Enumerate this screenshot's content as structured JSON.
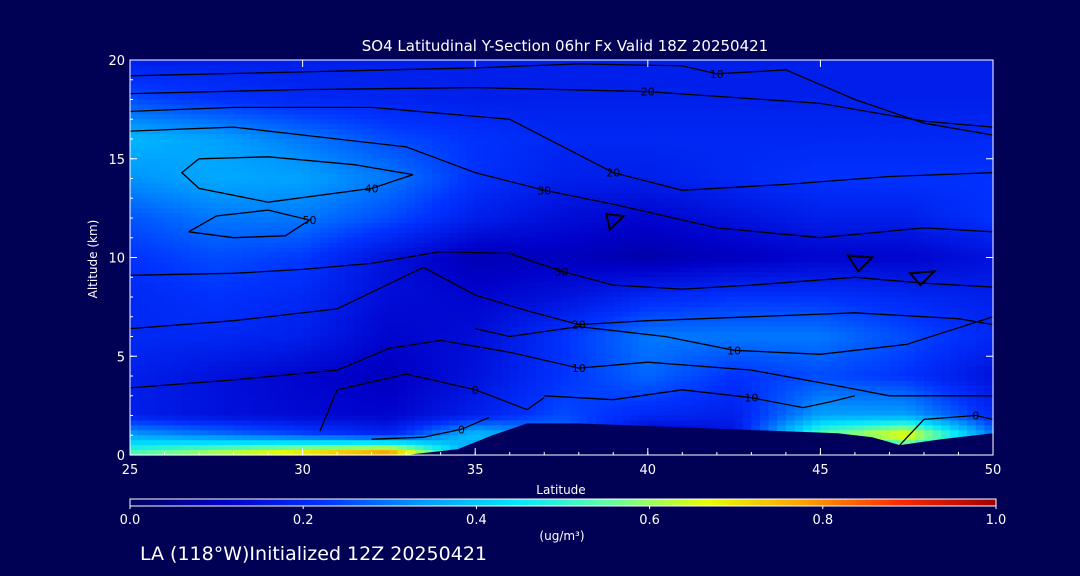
{
  "chart_data": {
    "type": "heatmap",
    "title": "SO4 Latitudinal Y-Section 06hr  Fx Valid 18Z 20250421",
    "xlabel": "Latitude",
    "ylabel": "Altitude (km)",
    "xlim": [
      25,
      50
    ],
    "ylim": [
      0,
      20
    ],
    "x_ticks": [
      25,
      30,
      35,
      40,
      45,
      50
    ],
    "y_ticks": [
      0,
      5,
      10,
      15,
      20
    ],
    "colorbar": {
      "label": "(ug/m³)",
      "range": [
        0.0,
        1.0
      ],
      "ticks": [
        "0.0",
        "0.2",
        "0.4",
        "0.6",
        "0.8",
        "1.0"
      ]
    },
    "colormap": [
      "#00005a",
      "#0000c8",
      "#0032ff",
      "#0096ff",
      "#00e6ff",
      "#64ffa0",
      "#e6ff00",
      "#ffa000",
      "#ff2800",
      "#a00000"
    ],
    "field": {
      "x": [
        25,
        27.5,
        30,
        32.5,
        35,
        37.5,
        40,
        42.5,
        45,
        47.5,
        50
      ],
      "y": [
        0,
        1,
        2,
        4,
        6,
        8,
        10,
        12,
        14,
        16,
        18,
        20
      ],
      "values": [
        [
          0.55,
          0.65,
          0.75,
          0.85,
          0.3,
          0.05,
          0.05,
          0.05,
          0.1,
          0.35,
          0.2
        ],
        [
          0.35,
          0.3,
          0.25,
          0.2,
          0.4,
          0.3,
          0.1,
          0.15,
          0.55,
          0.7,
          0.3
        ],
        [
          0.18,
          0.15,
          0.13,
          0.12,
          0.18,
          0.25,
          0.2,
          0.18,
          0.35,
          0.35,
          0.2
        ],
        [
          0.18,
          0.15,
          0.12,
          0.1,
          0.15,
          0.22,
          0.28,
          0.22,
          0.25,
          0.22,
          0.15
        ],
        [
          0.2,
          0.2,
          0.18,
          0.12,
          0.14,
          0.22,
          0.3,
          0.3,
          0.3,
          0.25,
          0.2
        ],
        [
          0.2,
          0.22,
          0.2,
          0.14,
          0.12,
          0.15,
          0.2,
          0.22,
          0.22,
          0.2,
          0.18
        ],
        [
          0.22,
          0.25,
          0.23,
          0.15,
          0.09,
          0.1,
          0.08,
          0.1,
          0.12,
          0.12,
          0.15
        ],
        [
          0.26,
          0.3,
          0.3,
          0.25,
          0.18,
          0.14,
          0.12,
          0.15,
          0.18,
          0.18,
          0.22
        ],
        [
          0.33,
          0.36,
          0.35,
          0.3,
          0.22,
          0.18,
          0.18,
          0.2,
          0.22,
          0.22,
          0.22
        ],
        [
          0.38,
          0.35,
          0.3,
          0.25,
          0.22,
          0.2,
          0.2,
          0.2,
          0.2,
          0.2,
          0.2
        ],
        [
          0.25,
          0.22,
          0.2,
          0.19,
          0.18,
          0.18,
          0.18,
          0.18,
          0.18,
          0.18,
          0.18
        ],
        [
          0.18,
          0.18,
          0.18,
          0.18,
          0.18,
          0.18,
          0.18,
          0.18,
          0.18,
          0.18,
          0.18
        ]
      ]
    },
    "terrain": {
      "lat": [
        25,
        33,
        34.5,
        35.5,
        36.5,
        38,
        41,
        44,
        45.5,
        46.5,
        47.3,
        48.5,
        50
      ],
      "alt": [
        0,
        0,
        0.3,
        1.0,
        1.6,
        1.6,
        1.4,
        1.2,
        1.1,
        0.9,
        0.5,
        0.8,
        1.1
      ]
    },
    "contours": [
      {
        "label": "10",
        "points": [
          [
            25,
            19.2
          ],
          [
            30,
            19.4
          ],
          [
            35,
            19.6
          ],
          [
            38,
            19.8
          ],
          [
            41,
            19.7
          ],
          [
            42,
            19.3
          ],
          [
            44,
            19.5
          ],
          [
            46,
            18
          ],
          [
            48,
            16.8
          ],
          [
            50,
            16.2
          ]
        ]
      },
      {
        "label": "20",
        "points": [
          [
            25,
            18.3
          ],
          [
            30,
            18.5
          ],
          [
            35,
            18.6
          ],
          [
            40,
            18.4
          ],
          [
            45,
            17.8
          ],
          [
            48,
            16.9
          ],
          [
            50,
            16.6
          ]
        ]
      },
      {
        "label": "20",
        "points": [
          [
            25,
            17.4
          ],
          [
            28,
            17.6
          ],
          [
            32,
            17.6
          ],
          [
            36,
            17
          ],
          [
            39,
            14.3
          ],
          [
            41,
            13.4
          ],
          [
            44,
            13.7
          ],
          [
            47,
            14.1
          ],
          [
            50,
            14.3
          ]
        ]
      },
      {
        "label": "30",
        "points": [
          [
            25,
            16.4
          ],
          [
            28,
            16.6
          ],
          [
            31,
            16
          ],
          [
            33,
            15.6
          ],
          [
            35,
            14.3
          ],
          [
            37,
            13.4
          ],
          [
            39,
            12.7
          ],
          [
            42,
            11.5
          ],
          [
            45,
            11
          ],
          [
            48,
            11.5
          ],
          [
            50,
            11.3
          ]
        ]
      },
      {
        "label": "40",
        "points": [
          [
            27,
            15
          ],
          [
            29,
            15.1
          ],
          [
            31.5,
            14.7
          ],
          [
            33.2,
            14.2
          ],
          [
            32,
            13.5
          ],
          [
            29,
            12.8
          ],
          [
            27,
            13.5
          ],
          [
            26.5,
            14.3
          ],
          [
            27,
            15
          ]
        ]
      },
      {
        "label": "50",
        "points": [
          [
            26.7,
            11.3
          ],
          [
            27.5,
            12.1
          ],
          [
            29,
            12.4
          ],
          [
            30.2,
            11.9
          ],
          [
            29.5,
            11.1
          ],
          [
            28,
            11
          ],
          [
            26.7,
            11.3
          ]
        ]
      },
      {
        "label": "30",
        "points": [
          [
            25,
            9.1
          ],
          [
            28,
            9.2
          ],
          [
            30,
            9.4
          ],
          [
            32,
            9.7
          ],
          [
            34,
            10.3
          ],
          [
            36,
            10.2
          ],
          [
            37.5,
            9.3
          ],
          [
            39,
            8.6
          ],
          [
            41,
            8.4
          ],
          [
            43,
            8.6
          ],
          [
            46,
            9
          ],
          [
            48,
            8.7
          ],
          [
            50,
            8.5
          ]
        ]
      },
      {
        "label": "20",
        "points": [
          [
            25,
            6.4
          ],
          [
            28,
            6.8
          ],
          [
            31,
            7.4
          ],
          [
            33.5,
            9.5
          ],
          [
            35,
            8.1
          ],
          [
            36.5,
            7.3
          ],
          [
            38,
            6.6
          ],
          [
            40,
            6.8
          ],
          [
            43,
            7
          ],
          [
            46,
            7.2
          ],
          [
            49,
            6.9
          ],
          [
            50,
            6.6
          ]
        ]
      },
      {
        "label": "10",
        "points": [
          [
            35,
            6.4
          ],
          [
            36,
            6
          ],
          [
            38,
            6.5
          ],
          [
            40.5,
            6
          ],
          [
            42.5,
            5.3
          ],
          [
            45,
            5.1
          ],
          [
            47.5,
            5.6
          ],
          [
            50,
            7
          ]
        ]
      },
      {
        "label": "10",
        "points": [
          [
            25,
            3.4
          ],
          [
            28,
            3.8
          ],
          [
            31,
            4.3
          ],
          [
            32.5,
            5.4
          ],
          [
            34,
            5.8
          ],
          [
            36,
            5.2
          ],
          [
            38,
            4.4
          ],
          [
            40,
            4.7
          ],
          [
            43,
            4.3
          ],
          [
            45.5,
            3.5
          ],
          [
            47,
            3
          ],
          [
            50,
            3
          ]
        ]
      },
      {
        "label": "10",
        "points": [
          [
            37,
            3
          ],
          [
            39,
            2.8
          ],
          [
            41,
            3.3
          ],
          [
            43,
            2.9
          ],
          [
            44.5,
            2.4
          ],
          [
            45.3,
            2.7
          ],
          [
            46,
            3
          ]
        ]
      },
      {
        "label": "0",
        "points": [
          [
            30.5,
            1.2
          ],
          [
            31,
            3.3
          ],
          [
            33,
            4.1
          ],
          [
            35,
            3.3
          ],
          [
            36.5,
            2.3
          ],
          [
            37,
            2.9
          ]
        ]
      },
      {
        "label": "0",
        "points": [
          [
            32,
            0.8
          ],
          [
            33.5,
            0.9
          ],
          [
            34.6,
            1.3
          ],
          [
            35.4,
            1.9
          ]
        ]
      },
      {
        "label": "0",
        "points": [
          [
            47.3,
            0.5
          ],
          [
            48,
            1.8
          ],
          [
            49.5,
            2
          ],
          [
            50,
            1.8
          ]
        ]
      }
    ],
    "closed_marks": [
      {
        "points": [
          [
            38.8,
            12.2
          ],
          [
            39.3,
            12.1
          ],
          [
            38.9,
            11.4
          ]
        ]
      },
      {
        "points": [
          [
            45.8,
            10.1
          ],
          [
            46.5,
            10.0
          ],
          [
            46.1,
            9.3
          ]
        ]
      },
      {
        "points": [
          [
            47.6,
            9.2
          ],
          [
            48.3,
            9.3
          ],
          [
            47.9,
            8.6
          ]
        ]
      }
    ]
  },
  "footer_text": "LA (118°W)Initialized 12Z 20250421"
}
